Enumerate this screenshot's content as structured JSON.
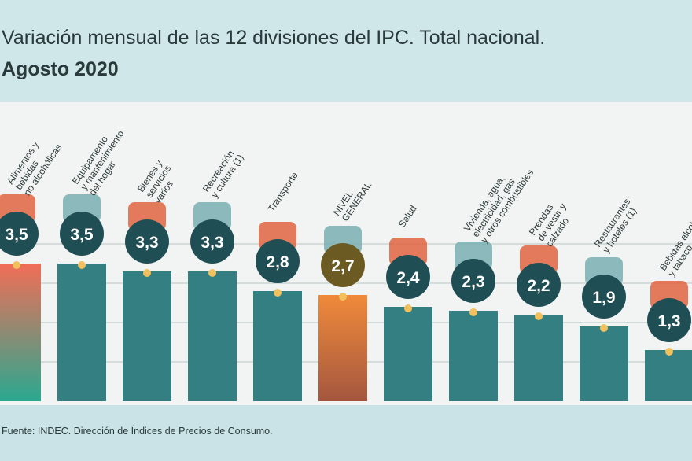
{
  "title": "Variación mensual de las 12 divisiones del IPC. Total nacional.",
  "subtitle": "Agosto 2020",
  "source": "Fuente: INDEC. Dirección de Índices de Precios de Consumo.",
  "colors": {
    "bar": "#337f82",
    "bar_highlight_top": "#f26d57",
    "bar_highlight_bottom": "#2aa88f",
    "bar_general_top": "#f08a3a",
    "bar_general_bottom": "#a4573f",
    "value_circle": "#1f4f55",
    "general_circle": "#6b5a22",
    "dot": "#f2c15d",
    "grid": "#b8c6c4"
  },
  "chart_data": {
    "type": "bar",
    "categories": [
      "Alimentos y bebidas no alcohólicas",
      "Equipamento y mantenimiento del hogar",
      "Bienes y servicios varios",
      "Recreación y cultura (1)",
      "Transporte",
      "NIVEL GENERAL",
      "Salud",
      "Vivienda, agua, electricidad, gas y otros combustibles",
      "Prendas de vestir y calzado",
      "Restaurantes y hoteles (1)",
      "Bebidas alcohólicas y tabaco"
    ],
    "label_lines": [
      [
        "Alimentos y",
        "bebidas",
        "no alcohólicas"
      ],
      [
        "Equipamento",
        "y mantenimiento",
        "del hogar"
      ],
      [
        "Bienes y",
        "servicios",
        "varios"
      ],
      [
        "Recreación",
        "y cultura (1)"
      ],
      [
        "Transporte"
      ],
      [
        "NIVEL",
        "GENERAL"
      ],
      [
        "Salud"
      ],
      [
        "Vivienda, agua,",
        "electricidad, gas",
        "y otros combustibles"
      ],
      [
        "Prendas",
        "de vestir y",
        "calzado"
      ],
      [
        "Restaurantes",
        "y hoteles (1)"
      ],
      [
        "Bebidas alcohólicas",
        "y tabaco"
      ]
    ],
    "values": [
      3.5,
      3.5,
      3.3,
      3.3,
      2.8,
      2.7,
      2.4,
      2.3,
      2.2,
      1.9,
      1.3
    ],
    "value_labels": [
      "3,5",
      "3,5",
      "3,3",
      "3,3",
      "2,8",
      "2,7",
      "2,4",
      "2,3",
      "2,2",
      "1,9",
      "1,3"
    ],
    "icons": [
      "food-basket-icon",
      "washing-machine-icon",
      "hands-icon",
      "recreation-icon",
      "bus-icon",
      "shopping-basket-icon",
      "health-cross-icon",
      "lightbulb-icon",
      "tshirt-icon",
      "diver-icon",
      "bottle-icon"
    ],
    "ylim": [
      0,
      4
    ]
  }
}
